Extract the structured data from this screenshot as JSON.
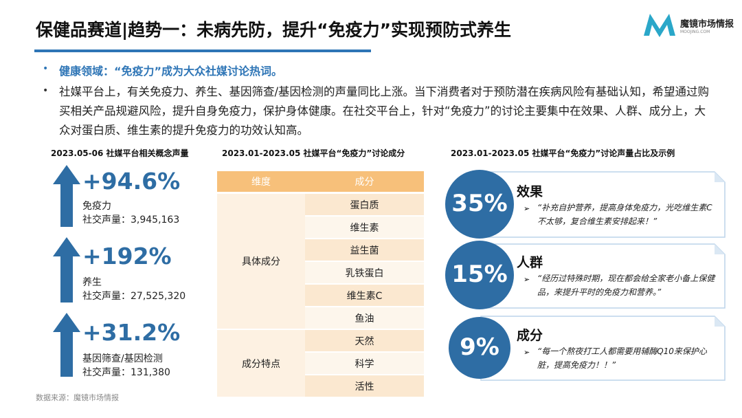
{
  "header": {
    "title": "保健品赛道|趋势一：未病先防，提升“免疫力”实现预防式养生",
    "logo": {
      "name": "魔镜市场情报",
      "site": "MOOJING.COM"
    }
  },
  "bullets": [
    "健康领域：“免疫力”成为大众社媒讨论热词。",
    "社媒平台上，有关免疫力、养生、基因筛查/基因检测的声量同比上涨。当下消费者对于预防潜在疾病风险有基础认知，希望通过购买相关产品规避风险，提升自身免疫力，保护身体健康。在社交平台上，针对“免疫力”的讨论主要集中在效果、人群、成分上，大众对蛋白质、维生素的提升免疫力的功效认知高。"
  ],
  "left": {
    "title": "2023.05-06 社媒平台相关概念声量",
    "items": [
      {
        "growth": "+94.6%",
        "name": "免疫力",
        "volume": "社交声量：3,945,163"
      },
      {
        "growth": "+192%",
        "name": "养生",
        "volume": "社交声量：27,525,320"
      },
      {
        "growth": "+31.2%",
        "name": "基因筛查/基因检测",
        "volume": "社交声量：131,380"
      }
    ]
  },
  "middle": {
    "title": "2023.01-2023.05 社媒平台“免疫力”讨论成分",
    "headers": [
      "维度",
      "成分"
    ],
    "groups": [
      {
        "label": "具体成分",
        "items": [
          "蛋白质",
          "维生素",
          "益生菌",
          "乳铁蛋白",
          "维生素C",
          "鱼油"
        ]
      },
      {
        "label": "成分特点",
        "items": [
          "天然",
          "科学",
          "活性"
        ]
      }
    ]
  },
  "right": {
    "title": "2023.01-2023.05 社媒平台“免疫力”讨论声量占比及示例",
    "cards": [
      {
        "share": "35%",
        "title": "效果",
        "quote": "“补充自护营养，提高身体免疫力，光吃维生素C不太够，复合维生素安排起来！”"
      },
      {
        "share": "15%",
        "title": "人群",
        "quote": "“经历过特殊时期，现在都会给全家老小备上保健品，来提升平时的免疫力和营养。”"
      },
      {
        "share": "9%",
        "title": "成分",
        "quote": "“每一个熬夜打工人都需要用辅酶Q10来保护心脏，提高免疫力！！”"
      }
    ]
  },
  "footer": "数据来源：魔镜市场情报"
}
